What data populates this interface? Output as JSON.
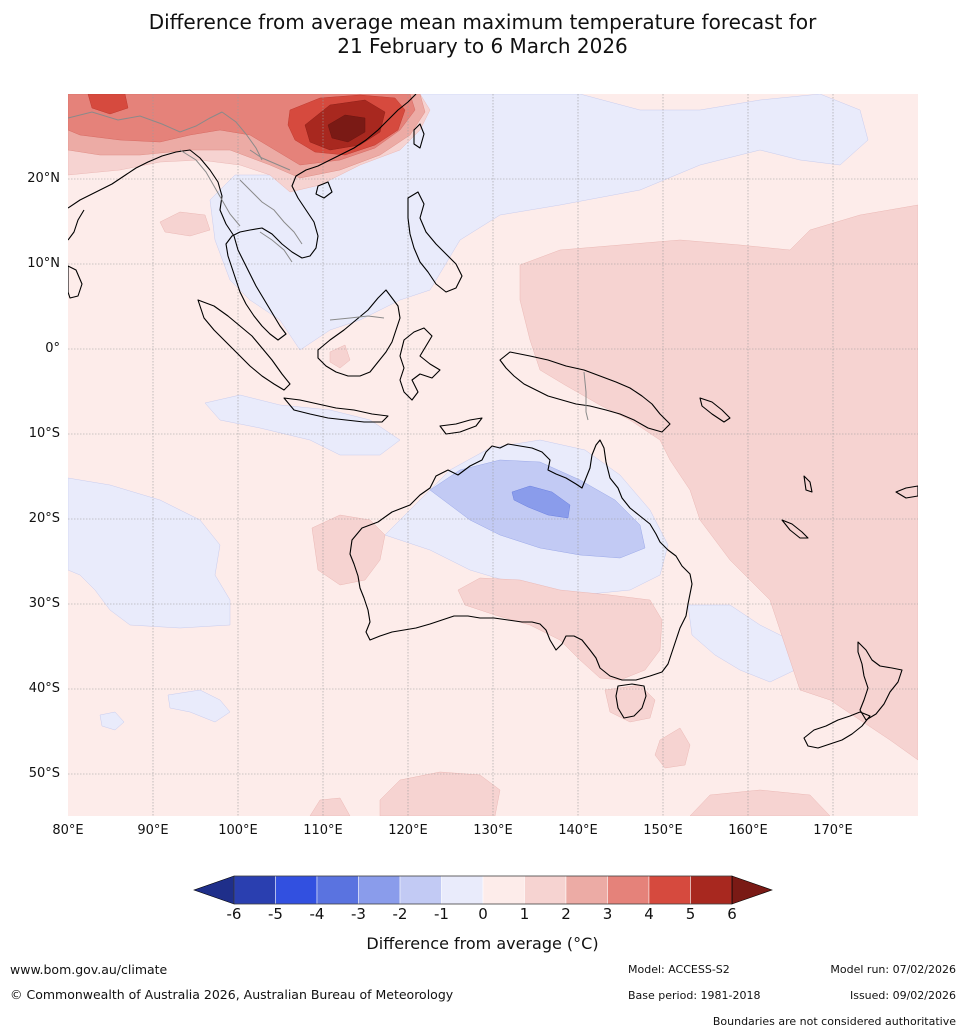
{
  "title": {
    "line1": "Difference from average mean maximum temperature forecast for",
    "line2": "21 February to 6 March 2026"
  },
  "map": {
    "region": "Australia and surrounding region",
    "lon_range": [
      80,
      180
    ],
    "lat_range": [
      -55,
      30
    ],
    "lat_labels": [
      "20°N",
      "10°N",
      "0°",
      "10°S",
      "20°S",
      "30°S",
      "40°S",
      "50°S"
    ],
    "lon_labels": [
      "80°E",
      "90°E",
      "100°E",
      "110°E",
      "120°E",
      "130°E",
      "140°E",
      "150°E",
      "160°E",
      "170°E"
    ]
  },
  "legend": {
    "ticks": [
      "-6",
      "-5",
      "-4",
      "-3",
      "-2",
      "-1",
      "0",
      "1",
      "2",
      "3",
      "4",
      "5",
      "6"
    ],
    "colors": [
      "#1f2f8a",
      "#2a3fb0",
      "#3250e0",
      "#5a73e0",
      "#8a9ceb",
      "#c2caf4",
      "#e9ebfb",
      "#fdecea",
      "#f6d3d1",
      "#ecaba5",
      "#e5827a",
      "#d64a3e",
      "#a8281f",
      "#7a1a15"
    ],
    "title": "Difference from average (°C)"
  },
  "footer": {
    "website": "www.bom.gov.au/climate",
    "copyright": "© Commonwealth of Australia 2026, Australian Bureau of Meteorology",
    "model": "Model: ACCESS-S2",
    "base_period": "Base period: 1981-2018",
    "model_run": "Model run: 07/02/2026",
    "issued": "Issued: 09/02/2026",
    "disclaimer": "Boundaries are not considered authoritative"
  }
}
